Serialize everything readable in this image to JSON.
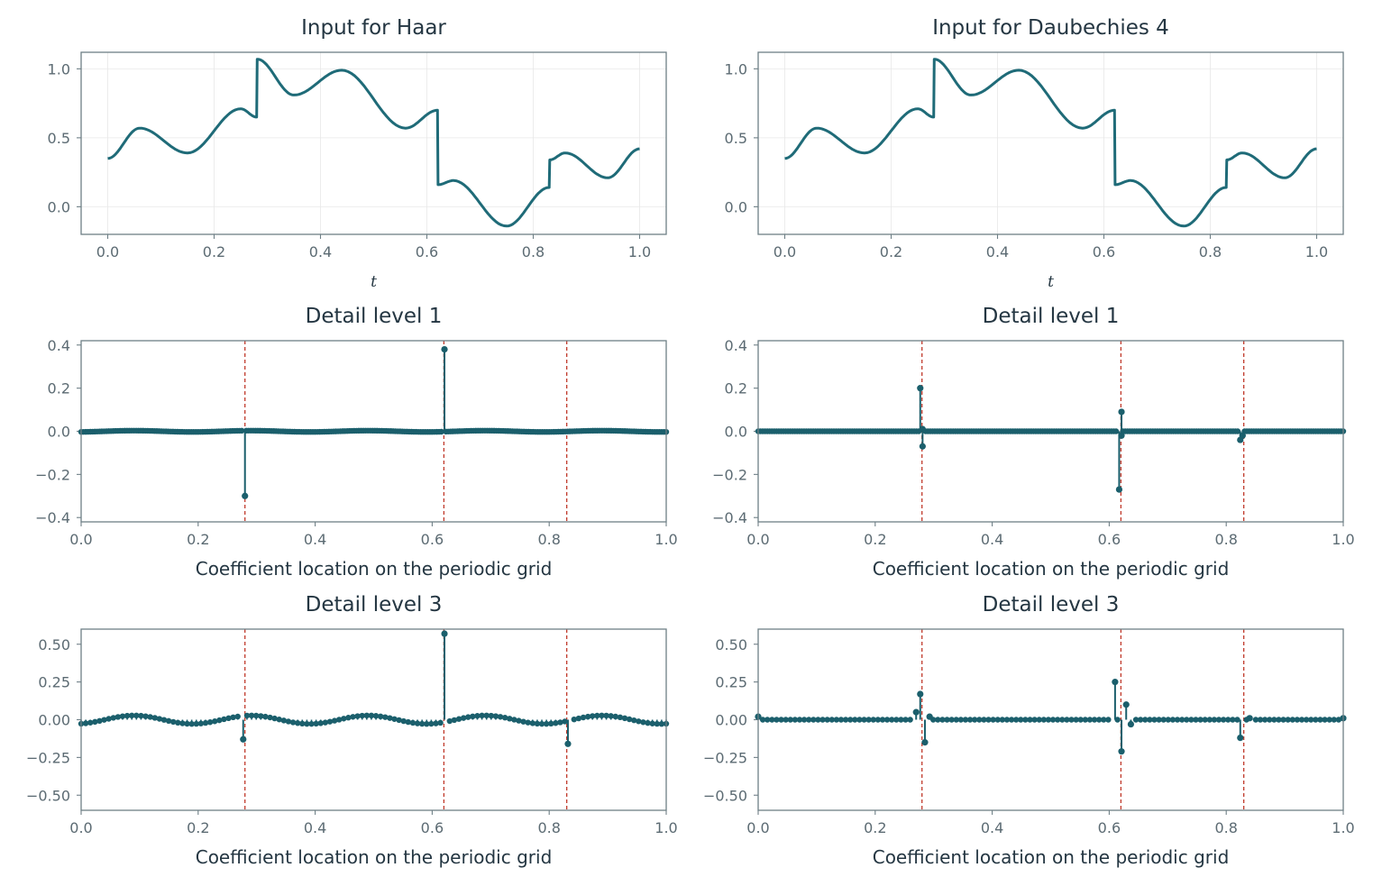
{
  "colors": {
    "signal": "#1f6b78",
    "marker": "#1b5f6c",
    "jump_line": "#c0392b",
    "text": "#243642",
    "tick": "#5c6b73"
  },
  "chart_data": [
    {
      "type": "line",
      "title": "Input for Haar",
      "xlabel": "t",
      "xlim": [
        -0.05,
        1.05
      ],
      "ylim": [
        -0.2,
        1.12
      ],
      "xticks": [
        0,
        0.2,
        0.4,
        0.6,
        0.8,
        1.0
      ],
      "xtick_labels": [
        "0.0",
        "0.2",
        "0.4",
        "0.6",
        "0.8",
        "1.0"
      ],
      "yticks": [
        0,
        0.5,
        1.0
      ],
      "ytick_labels": [
        "0.0",
        "0.5",
        "1.0"
      ],
      "grid": true,
      "series": [
        {
          "x": [
            0,
            0.06,
            0.15,
            0.25,
            0.28,
            0.281,
            0.35,
            0.44,
            0.56,
            0.62,
            0.621,
            0.65,
            0.75,
            0.83,
            0.831,
            0.86,
            0.94,
            1.0
          ],
          "y": [
            0.35,
            0.57,
            0.39,
            0.71,
            0.65,
            1.07,
            0.81,
            0.99,
            0.57,
            0.7,
            0.16,
            0.19,
            -0.14,
            0.14,
            0.34,
            0.39,
            0.21,
            0.42
          ]
        }
      ]
    },
    {
      "type": "line",
      "title": "Input for Daubechies 4",
      "xlabel": "t",
      "xlim": [
        -0.05,
        1.05
      ],
      "ylim": [
        -0.2,
        1.12
      ],
      "xticks": [
        0,
        0.2,
        0.4,
        0.6,
        0.8,
        1.0
      ],
      "xtick_labels": [
        "0.0",
        "0.2",
        "0.4",
        "0.6",
        "0.8",
        "1.0"
      ],
      "yticks": [
        0,
        0.5,
        1.0
      ],
      "ytick_labels": [
        "0.0",
        "0.5",
        "1.0"
      ],
      "grid": true,
      "series": [
        {
          "x": [
            0,
            0.06,
            0.15,
            0.25,
            0.28,
            0.281,
            0.35,
            0.44,
            0.56,
            0.62,
            0.621,
            0.65,
            0.75,
            0.83,
            0.831,
            0.86,
            0.94,
            1.0
          ],
          "y": [
            0.35,
            0.57,
            0.39,
            0.71,
            0.65,
            1.07,
            0.81,
            0.99,
            0.57,
            0.7,
            0.16,
            0.19,
            -0.14,
            0.14,
            0.34,
            0.39,
            0.21,
            0.42
          ]
        }
      ]
    },
    {
      "type": "scatter",
      "title": "Detail level 1",
      "xlabel": "Coefficient location on the periodic grid",
      "xlim": [
        0,
        1
      ],
      "ylim": [
        -0.42,
        0.42
      ],
      "xticks": [
        0,
        0.2,
        0.4,
        0.6,
        0.8,
        1.0
      ],
      "xtick_labels": [
        "0.0",
        "0.2",
        "0.4",
        "0.6",
        "0.8",
        "1.0"
      ],
      "yticks": [
        -0.4,
        -0.2,
        0,
        0.2,
        0.4
      ],
      "ytick_labels": [
        "−0.4",
        "−0.2",
        "0.0",
        "0.2",
        "0.4"
      ],
      "grid": false,
      "jumps": [
        0.28,
        0.62,
        0.83
      ],
      "n_coefficients": 256,
      "baseline_amplitude": 0.003,
      "spikes": [
        {
          "x": 0.28,
          "y": -0.3
        },
        {
          "x": 0.621,
          "y": 0.38
        }
      ]
    },
    {
      "type": "scatter",
      "title": "Detail level 1",
      "xlabel": "Coefficient location on the periodic grid",
      "xlim": [
        0,
        1
      ],
      "ylim": [
        -0.42,
        0.42
      ],
      "xticks": [
        0,
        0.2,
        0.4,
        0.6,
        0.8,
        1.0
      ],
      "xtick_labels": [
        "0.0",
        "0.2",
        "0.4",
        "0.6",
        "0.8",
        "1.0"
      ],
      "yticks": [
        -0.4,
        -0.2,
        0,
        0.2,
        0.4
      ],
      "ytick_labels": [
        "−0.4",
        "−0.2",
        "0.0",
        "0.2",
        "0.4"
      ],
      "grid": false,
      "jumps": [
        0.28,
        0.62,
        0.83
      ],
      "n_coefficients": 256,
      "baseline_amplitude": 0.0,
      "spikes": [
        {
          "x": 0.277,
          "y": 0.2
        },
        {
          "x": 0.281,
          "y": 0.01
        },
        {
          "x": 0.281,
          "y": -0.07
        },
        {
          "x": 0.617,
          "y": -0.27
        },
        {
          "x": 0.621,
          "y": 0.09
        },
        {
          "x": 0.621,
          "y": -0.02
        },
        {
          "x": 0.824,
          "y": -0.04
        },
        {
          "x": 0.828,
          "y": -0.02
        }
      ]
    },
    {
      "type": "scatter",
      "title": "Detail level 3",
      "xlabel": "Coefficient location on the periodic grid",
      "xlim": [
        0,
        1
      ],
      "ylim": [
        -0.6,
        0.6
      ],
      "xticks": [
        0,
        0.2,
        0.4,
        0.6,
        0.8,
        1.0
      ],
      "xtick_labels": [
        "0.0",
        "0.2",
        "0.4",
        "0.6",
        "0.8",
        "1.0"
      ],
      "yticks": [
        -0.5,
        -0.25,
        0,
        0.25,
        0.5
      ],
      "ytick_labels": [
        "−0.50",
        "−0.25",
        "0.00",
        "0.25",
        "0.50"
      ],
      "grid": false,
      "jumps": [
        0.28,
        0.62,
        0.83
      ],
      "n_coefficients": 128,
      "baseline_amplitude": 0.028,
      "spikes": [
        {
          "x": 0.277,
          "y": -0.13
        },
        {
          "x": 0.621,
          "y": 0.57
        },
        {
          "x": 0.832,
          "y": -0.16
        }
      ]
    },
    {
      "type": "scatter",
      "title": "Detail level 3",
      "xlabel": "Coefficient location on the periodic grid",
      "xlim": [
        0,
        1
      ],
      "ylim": [
        -0.6,
        0.6
      ],
      "xticks": [
        0,
        0.2,
        0.4,
        0.6,
        0.8,
        1.0
      ],
      "xtick_labels": [
        "0.0",
        "0.2",
        "0.4",
        "0.6",
        "0.8",
        "1.0"
      ],
      "yticks": [
        -0.5,
        -0.25,
        0,
        0.25,
        0.5
      ],
      "ytick_labels": [
        "−0.50",
        "−0.25",
        "0.00",
        "0.25",
        "0.50"
      ],
      "grid": false,
      "jumps": [
        0.28,
        0.62,
        0.83
      ],
      "n_coefficients": 128,
      "baseline_amplitude": 0.0,
      "spikes": [
        {
          "x": 0.0,
          "y": 0.02
        },
        {
          "x": 0.27,
          "y": 0.05
        },
        {
          "x": 0.277,
          "y": 0.17
        },
        {
          "x": 0.285,
          "y": -0.15
        },
        {
          "x": 0.293,
          "y": 0.02
        },
        {
          "x": 0.61,
          "y": 0.25
        },
        {
          "x": 0.621,
          "y": -0.21
        },
        {
          "x": 0.629,
          "y": 0.1
        },
        {
          "x": 0.637,
          "y": -0.03
        },
        {
          "x": 0.824,
          "y": -0.12
        },
        {
          "x": 0.84,
          "y": 0.01
        },
        {
          "x": 1.0,
          "y": 0.01
        }
      ]
    }
  ]
}
